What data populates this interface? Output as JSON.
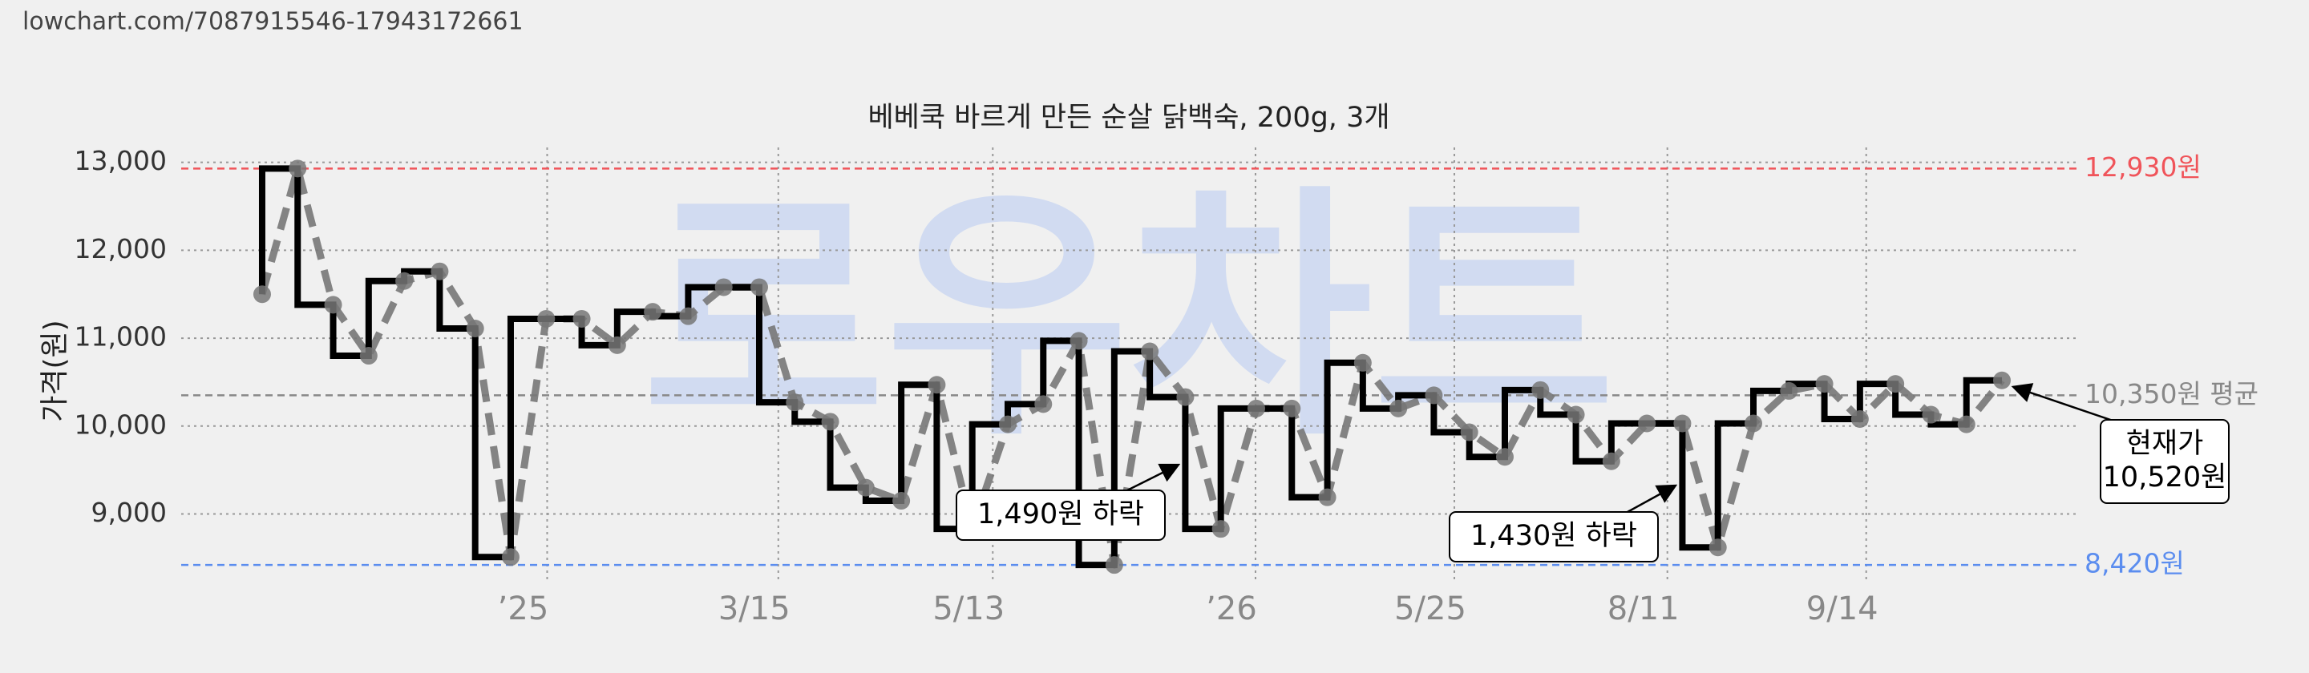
{
  "header": {
    "url": "lowchart.com/7087915546-17943172661"
  },
  "chart_data": {
    "type": "step-line",
    "title": "베베쿡 바르게 만든 순살 닭백숙, 200g, 3개",
    "y_label": "가격(원)",
    "watermark": "로우차트",
    "values": [
      11500,
      12930,
      11380,
      10800,
      11650,
      11760,
      11110,
      8510,
      11220,
      11220,
      10920,
      11300,
      11250,
      11580,
      11580,
      10270,
      10050,
      9300,
      9150,
      10470,
      8830,
      10020,
      10250,
      10970,
      8420,
      10850,
      10330,
      8830,
      10200,
      10200,
      9190,
      10720,
      10200,
      10350,
      9930,
      9650,
      10410,
      10130,
      9600,
      10030,
      10030,
      8620,
      10030,
      10400,
      10480,
      10080,
      10480,
      10130,
      10020,
      10520
    ],
    "ylim": [
      8230,
      13170
    ],
    "yticks": [
      {
        "value": 9000,
        "label": "9,000"
      },
      {
        "value": 10000,
        "label": "10,000"
      },
      {
        "value": 11000,
        "label": "11,000"
      },
      {
        "value": 12000,
        "label": "12,000"
      },
      {
        "value": 13000,
        "label": "13,000"
      }
    ],
    "xlim": [
      -2.28,
      51.1
    ],
    "xticks": [
      {
        "value": 7.35,
        "label": "’25"
      },
      {
        "value": 13.86,
        "label": "3/15"
      },
      {
        "value": 19.9,
        "label": "5/13"
      },
      {
        "value": 27.3,
        "label": "’26"
      },
      {
        "value": 32.9,
        "label": "5/25"
      },
      {
        "value": 38.9,
        "label": "8/11"
      },
      {
        "value": 44.5,
        "label": "9/14"
      }
    ],
    "grid": true,
    "hlines": [
      {
        "value": 12930,
        "label": "12,930원",
        "color": "#f0545a"
      },
      {
        "value": 10350,
        "label": "10,350원 평균",
        "color": "#888888"
      },
      {
        "value": 8420,
        "label": "8,420원",
        "color": "#5b8def"
      }
    ],
    "annotations": [
      {
        "text": "1,490원 하락"
      },
      {
        "text": "1,430원 하락"
      },
      {
        "lines": [
          "현재가",
          "10,520원"
        ]
      }
    ]
  }
}
